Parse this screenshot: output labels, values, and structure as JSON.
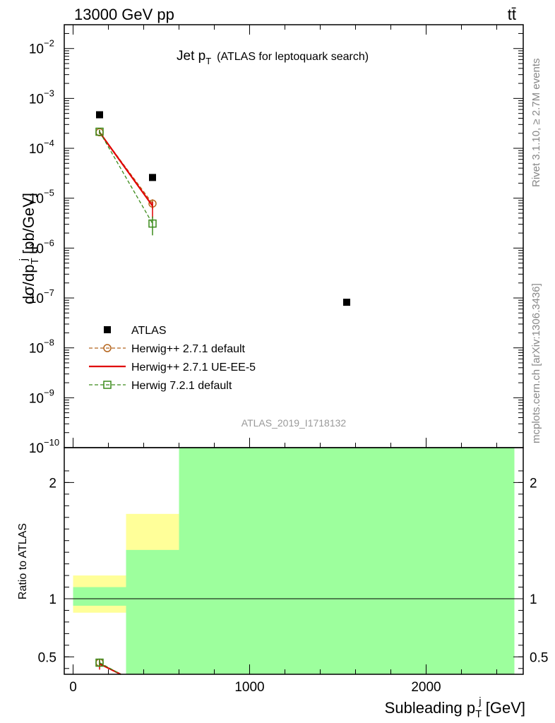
{
  "header": {
    "energy": "13000 GeV pp",
    "process": "tt̄"
  },
  "side_notes": {
    "rivet": "Rivet 3.1.10, ≥ 2.7M events",
    "mcplots": "mcplots.cern.ch [arXiv:1306.3436]"
  },
  "chart_data": [
    {
      "type": "scatter",
      "title": "Jet p_T (ATLAS for leptoquark search)",
      "title_main": "Jet p",
      "title_sub": "T",
      "title_rest": "(ATLAS for leptoquark search)",
      "ylabel": "dσ/dp_T^j [pb/GeV]",
      "ylabel_parts": {
        "a": "dσ/dp",
        "sub": "T",
        "sup": "j",
        "b": " [pb/GeV]"
      },
      "y_scale": "log",
      "ylim": [
        1e-10,
        0.03
      ],
      "y_ticks": [
        {
          "value": 1e-10,
          "label": "10",
          "exp": "−10"
        },
        {
          "value": 1e-09,
          "label": "10",
          "exp": "−9"
        },
        {
          "value": 1e-08,
          "label": "10",
          "exp": "−8"
        },
        {
          "value": 1e-07,
          "label": "10",
          "exp": "−7"
        },
        {
          "value": 1e-06,
          "label": "10",
          "exp": "−6"
        },
        {
          "value": 1e-05,
          "label": "10",
          "exp": "−5"
        },
        {
          "value": 0.0001,
          "label": "10",
          "exp": "−4"
        },
        {
          "value": 0.001,
          "label": "10",
          "exp": "−3"
        },
        {
          "value": 0.01,
          "label": "10",
          "exp": "−2"
        }
      ],
      "xlim": [
        -50,
        2550
      ],
      "watermark": "ATLAS_2019_I1718132",
      "legend_position": "lower-left",
      "series": [
        {
          "name": "ATLAS",
          "marker": "filled-square",
          "color": "#000000",
          "x": [
            150,
            450,
            1550
          ],
          "y": [
            0.00047,
            2.6e-05,
            8.2e-08
          ]
        },
        {
          "name": "Herwig++ 2.7.1 default",
          "marker": "open-circle",
          "line": "dashed",
          "color": "#b5651d",
          "x": [
            150,
            450
          ],
          "y": [
            0.00021,
            7.8e-06
          ],
          "err_hi": [
            0.00023,
            9.5e-06
          ],
          "err_lo": [
            0.000195,
            6e-06
          ]
        },
        {
          "name": "Herwig++ 2.7.1 UE-EE-5",
          "marker": "none",
          "line": "solid",
          "color": "#e00000",
          "x": [
            150,
            450
          ],
          "y": [
            0.00021,
            7e-06
          ],
          "err_hi": [
            0.00023,
            8.5e-06
          ],
          "err_lo": [
            0.000195,
            4e-06
          ]
        },
        {
          "name": "Herwig 7.2.1 default",
          "marker": "open-square",
          "line": "dashed",
          "color": "#3a8a1a",
          "x": [
            150,
            450
          ],
          "y": [
            0.000215,
            3.1e-06
          ],
          "err_hi": [
            0.000235,
            4.3e-06
          ],
          "err_lo": [
            0.000195,
            1.8e-06
          ]
        }
      ]
    },
    {
      "type": "scatter",
      "ylabel": "Ratio to ATLAS",
      "xlabel": "Subleading p_T^j [GeV]",
      "xlabel_parts": {
        "a": "Subleading p",
        "sub": "T",
        "sup": "j",
        "b": " [GeV]"
      },
      "xlim": [
        -50,
        2550
      ],
      "ylim": [
        0.35,
        2.3
      ],
      "x_ticks": [
        {
          "value": 0,
          "label": "0"
        },
        {
          "value": 1000,
          "label": "1000"
        },
        {
          "value": 2000,
          "label": "2000"
        }
      ],
      "y_ticks": [
        {
          "value": 0.5,
          "label": "0.5"
        },
        {
          "value": 1,
          "label": "1"
        },
        {
          "value": 2,
          "label": "2"
        }
      ],
      "reference_line": 1,
      "bands": [
        {
          "x0": 0,
          "x1": 300,
          "yellow": [
            0.88,
            1.2
          ],
          "green": [
            0.94,
            1.1
          ]
        },
        {
          "x0": 300,
          "x1": 600,
          "yellow": [
            0.71,
            1.73
          ],
          "green": [
            0.35,
            1.42
          ]
        },
        {
          "x0": 600,
          "x1": 2500,
          "yellow": [
            0.35,
            2.3
          ],
          "green": [
            0.35,
            2.3
          ]
        }
      ],
      "colors": {
        "yellow": "#ffff99",
        "green": "#9dff9d"
      },
      "series": [
        {
          "name": "Herwig++ 2.7.1 default",
          "color": "#b5651d",
          "marker": "open-circle",
          "x": [
            150
          ],
          "y": [
            0.45
          ],
          "err_hi": [
            0.48
          ],
          "err_lo": [
            0.41
          ]
        },
        {
          "name": "Herwig++ 2.7.1 UE-EE-5",
          "color": "#e00000",
          "marker": "none",
          "x": [
            150
          ],
          "y": [
            0.44
          ],
          "err_hi": [
            0.47
          ],
          "err_lo": [
            0.39
          ]
        },
        {
          "name": "Herwig 7.2.1 default",
          "color": "#3a8a1a",
          "marker": "open-square",
          "x": [
            150
          ],
          "y": [
            0.45
          ],
          "err_hi": [
            0.48
          ],
          "err_lo": [
            0.42
          ]
        }
      ]
    }
  ]
}
